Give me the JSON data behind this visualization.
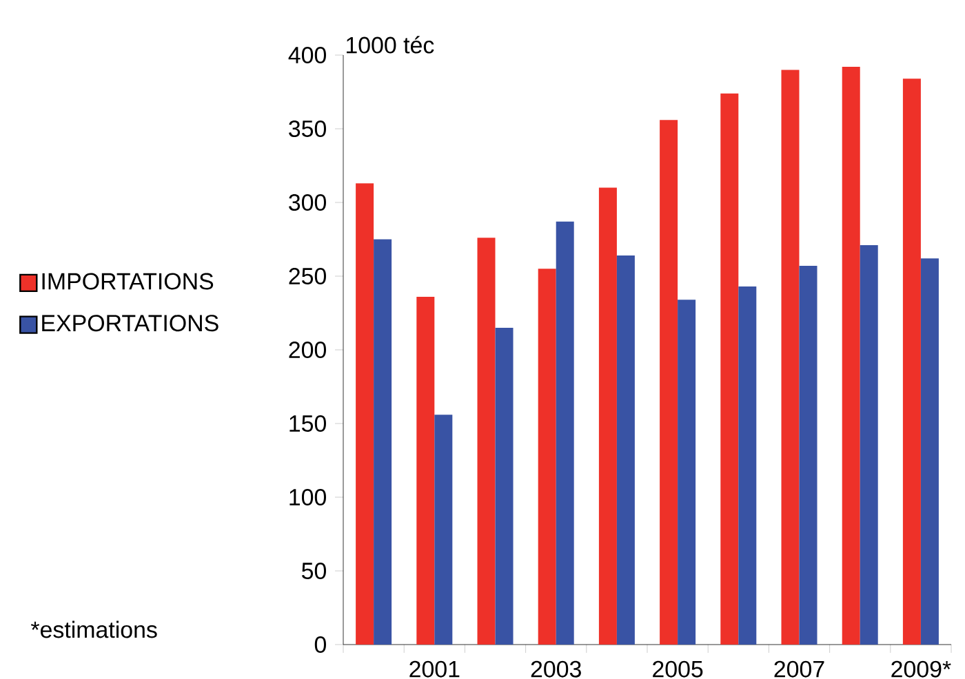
{
  "chart_data": {
    "type": "bar",
    "ylabel": "1000 téc",
    "categories": [
      null,
      "2001",
      null,
      "2003",
      null,
      "2005",
      null,
      "2007",
      null,
      "2009*"
    ],
    "series": [
      {
        "name": "IMPORTATIONS",
        "color": "#ee3129",
        "values": [
          313,
          236,
          276,
          255,
          310,
          356,
          374,
          390,
          392,
          384
        ]
      },
      {
        "name": "EXPORTATIONS",
        "color": "#3953a4",
        "values": [
          275,
          156,
          215,
          287,
          264,
          234,
          243,
          257,
          271,
          262
        ]
      }
    ],
    "ylim": [
      0,
      400
    ],
    "yticks": [
      0,
      50,
      100,
      150,
      200,
      250,
      300,
      350,
      400
    ],
    "legend": "left",
    "annotations": [
      "*estimations"
    ]
  }
}
